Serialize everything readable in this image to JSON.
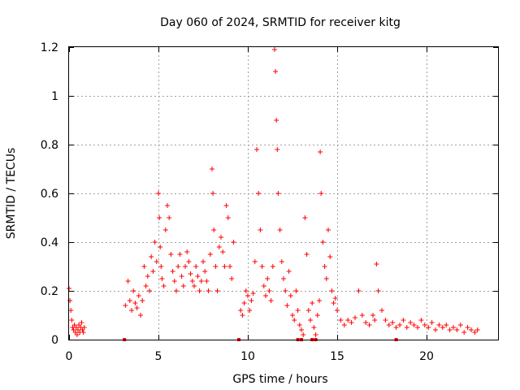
{
  "chart_data": {
    "type": "scatter",
    "title": "Day 060 of 2024, SRMTID for receiver kitg",
    "xlabel": "GPS time / hours",
    "ylabel": "SRMTID / TECUs",
    "xlim": [
      0,
      24
    ],
    "ylim": [
      0,
      1.2
    ],
    "x_ticks": [
      0,
      5,
      10,
      15,
      20
    ],
    "x_tick_labels": [
      "0",
      "5",
      "10",
      "15",
      "20"
    ],
    "y_ticks": [
      0,
      0.2,
      0.4,
      0.6,
      0.8,
      1.0,
      1.2
    ],
    "y_tick_labels": [
      "0",
      "0.2",
      "0.4",
      "0.6",
      "0.8",
      "1",
      "1.2"
    ],
    "grid": true,
    "marker": "plus",
    "series_color": "#ff0000",
    "series": [
      {
        "name": "SRMTID",
        "x": [
          0.0,
          0.05,
          0.1,
          0.15,
          0.2,
          0.25,
          0.3,
          0.35,
          0.4,
          0.45,
          0.5,
          0.55,
          0.6,
          0.65,
          0.7,
          0.75,
          0.8,
          0.85,
          3.15,
          3.3,
          3.4,
          3.5,
          3.6,
          3.7,
          3.8,
          3.9,
          4.0,
          4.1,
          4.2,
          4.3,
          4.4,
          4.5,
          4.6,
          4.7,
          4.8,
          4.9,
          5.0,
          5.05,
          5.1,
          5.15,
          5.2,
          5.3,
          5.4,
          5.5,
          5.6,
          5.7,
          5.8,
          5.9,
          6.0,
          6.1,
          6.2,
          6.3,
          6.4,
          6.5,
          6.6,
          6.7,
          6.8,
          6.9,
          7.0,
          7.1,
          7.2,
          7.3,
          7.4,
          7.5,
          7.6,
          7.7,
          7.8,
          7.9,
          8.0,
          8.05,
          8.1,
          8.2,
          8.3,
          8.4,
          8.5,
          8.6,
          8.7,
          8.8,
          8.9,
          9.0,
          9.1,
          9.2,
          9.6,
          9.7,
          9.8,
          9.9,
          10.0,
          10.1,
          10.2,
          10.3,
          10.4,
          10.5,
          10.6,
          10.7,
          10.8,
          10.9,
          11.0,
          11.1,
          11.2,
          11.3,
          11.4,
          11.5,
          11.55,
          11.6,
          11.65,
          11.7,
          11.8,
          11.9,
          12.0,
          12.1,
          12.2,
          12.3,
          12.4,
          12.5,
          12.6,
          12.7,
          12.8,
          12.9,
          13.0,
          13.1,
          13.2,
          13.3,
          13.4,
          13.5,
          13.6,
          13.7,
          13.8,
          13.9,
          14.0,
          14.05,
          14.1,
          14.2,
          14.3,
          14.4,
          14.5,
          14.6,
          14.7,
          14.8,
          14.9,
          15.0,
          15.2,
          15.4,
          15.6,
          15.8,
          16.0,
          16.2,
          16.4,
          16.6,
          16.8,
          17.0,
          17.1,
          17.2,
          17.3,
          17.5,
          17.7,
          17.9,
          18.1,
          18.3,
          18.5,
          18.7,
          18.9,
          19.1,
          19.3,
          19.5,
          19.7,
          19.9,
          20.1,
          20.3,
          20.5,
          20.7,
          20.9,
          21.1,
          21.3,
          21.5,
          21.7,
          21.9,
          22.1,
          22.3,
          22.5,
          22.7,
          22.85
        ],
        "y": [
          0.21,
          0.16,
          0.12,
          0.08,
          0.05,
          0.04,
          0.06,
          0.03,
          0.05,
          0.02,
          0.04,
          0.06,
          0.03,
          0.05,
          0.07,
          0.04,
          0.03,
          0.05,
          0.14,
          0.24,
          0.16,
          0.12,
          0.2,
          0.15,
          0.13,
          0.18,
          0.1,
          0.16,
          0.3,
          0.22,
          0.26,
          0.2,
          0.34,
          0.28,
          0.4,
          0.32,
          0.6,
          0.5,
          0.38,
          0.3,
          0.25,
          0.22,
          0.45,
          0.55,
          0.5,
          0.35,
          0.28,
          0.24,
          0.2,
          0.3,
          0.35,
          0.26,
          0.22,
          0.3,
          0.36,
          0.32,
          0.27,
          0.24,
          0.22,
          0.3,
          0.26,
          0.2,
          0.24,
          0.32,
          0.28,
          0.24,
          0.2,
          0.35,
          0.7,
          0.6,
          0.45,
          0.3,
          0.2,
          0.38,
          0.42,
          0.36,
          0.3,
          0.55,
          0.5,
          0.3,
          0.25,
          0.4,
          0.12,
          0.1,
          0.15,
          0.2,
          0.18,
          0.12,
          0.16,
          0.19,
          0.32,
          0.78,
          0.6,
          0.45,
          0.3,
          0.22,
          0.18,
          0.25,
          0.2,
          0.16,
          0.3,
          1.19,
          1.1,
          0.9,
          0.78,
          0.6,
          0.45,
          0.32,
          0.25,
          0.2,
          0.14,
          0.28,
          0.18,
          0.1,
          0.08,
          0.2,
          0.12,
          0.06,
          0.04,
          0.02,
          0.5,
          0.35,
          0.12,
          0.08,
          0.15,
          0.05,
          0.02,
          0.1,
          0.16,
          0.77,
          0.6,
          0.4,
          0.3,
          0.25,
          0.45,
          0.34,
          0.2,
          0.15,
          0.17,
          0.12,
          0.08,
          0.06,
          0.08,
          0.07,
          0.09,
          0.2,
          0.1,
          0.07,
          0.06,
          0.1,
          0.08,
          0.31,
          0.2,
          0.12,
          0.08,
          0.06,
          0.07,
          0.05,
          0.06,
          0.08,
          0.05,
          0.07,
          0.06,
          0.05,
          0.08,
          0.06,
          0.05,
          0.07,
          0.04,
          0.06,
          0.05,
          0.06,
          0.04,
          0.05,
          0.04,
          0.06,
          0.03,
          0.05,
          0.04,
          0.03,
          0.04
        ]
      }
    ],
    "data_gaps_x": [
      3.1,
      9.5,
      12.8,
      13.0,
      13.6,
      13.8,
      18.3
    ]
  }
}
